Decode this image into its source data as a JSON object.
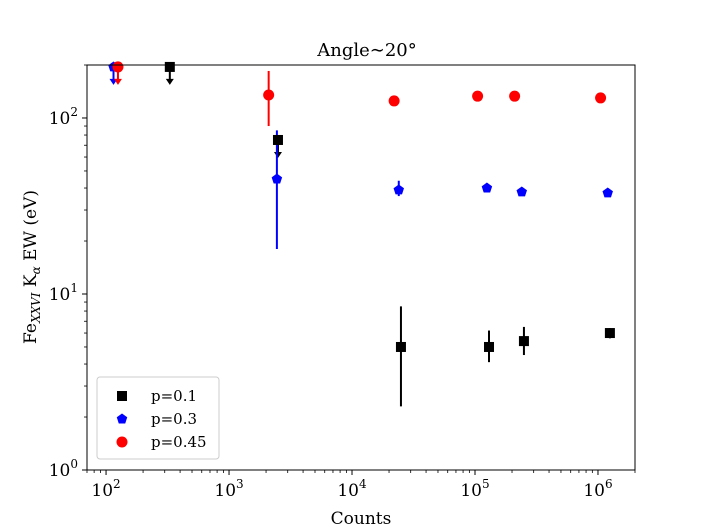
{
  "chart_data": {
    "type": "scatter",
    "title": "Angle∼20°",
    "xlabel": "Counts",
    "ylabel": {
      "prefix": "Fe",
      "subscript": "XXVI",
      "middle": " K",
      "subscript2": "α",
      "suffix": " EW (eV)"
    },
    "xscale": "log",
    "yscale": "log",
    "xlim": [
      70,
      2000000
    ],
    "ylim": [
      1,
      200
    ],
    "xticks": [
      {
        "value": 100,
        "base": "10",
        "exp": "2"
      },
      {
        "value": 1000,
        "base": "10",
        "exp": "3"
      },
      {
        "value": 10000,
        "base": "10",
        "exp": "4"
      },
      {
        "value": 100000,
        "base": "10",
        "exp": "5"
      },
      {
        "value": 1000000,
        "base": "10",
        "exp": "6"
      }
    ],
    "yticks": [
      {
        "value": 1,
        "base": "10",
        "exp": "0"
      },
      {
        "value": 10,
        "base": "10",
        "exp": "1"
      },
      {
        "value": 100,
        "base": "10",
        "exp": "2"
      }
    ],
    "legend_position": "bottom-left",
    "series": [
      {
        "name": "p=0.1",
        "color": "#000000",
        "marker": "square",
        "points": [
          {
            "x": 330,
            "y": 195,
            "upper_limit": true
          },
          {
            "x": 2500,
            "y": 75,
            "upper_limit": true
          },
          {
            "x": 25000,
            "y": 5.0,
            "yerr": [
              2.3,
              8.5
            ]
          },
          {
            "x": 130000,
            "y": 5.0,
            "yerr": [
              4.1,
              6.2
            ]
          },
          {
            "x": 250000,
            "y": 5.4,
            "yerr": [
              4.5,
              6.5
            ]
          },
          {
            "x": 1250000,
            "y": 6.0,
            "yerr": [
              5.6,
              6.4
            ]
          }
        ]
      },
      {
        "name": "p=0.3",
        "color": "#0000ff",
        "marker": "pentagon",
        "points": [
          {
            "x": 115,
            "y": 195,
            "upper_limit": true
          },
          {
            "x": 2450,
            "y": 45,
            "yerr": [
              18,
              85
            ]
          },
          {
            "x": 24000,
            "y": 39,
            "yerr": [
              36,
              44
            ]
          },
          {
            "x": 125000,
            "y": 40,
            "yerr": [
              38.5,
              41.5
            ]
          },
          {
            "x": 240000,
            "y": 38,
            "yerr": [
              37,
              39
            ]
          },
          {
            "x": 1200000,
            "y": 37.5,
            "yerr": [
              36.5,
              38.5
            ]
          }
        ]
      },
      {
        "name": "p=0.45",
        "color": "#ff0000",
        "marker": "circle",
        "points": [
          {
            "x": 125,
            "y": 195,
            "upper_limit": true
          },
          {
            "x": 2100,
            "y": 135,
            "yerr": [
              90,
              185
            ]
          },
          {
            "x": 22000,
            "y": 125
          },
          {
            "x": 105000,
            "y": 133
          },
          {
            "x": 210000,
            "y": 133
          },
          {
            "x": 1050000,
            "y": 130
          }
        ]
      }
    ]
  }
}
